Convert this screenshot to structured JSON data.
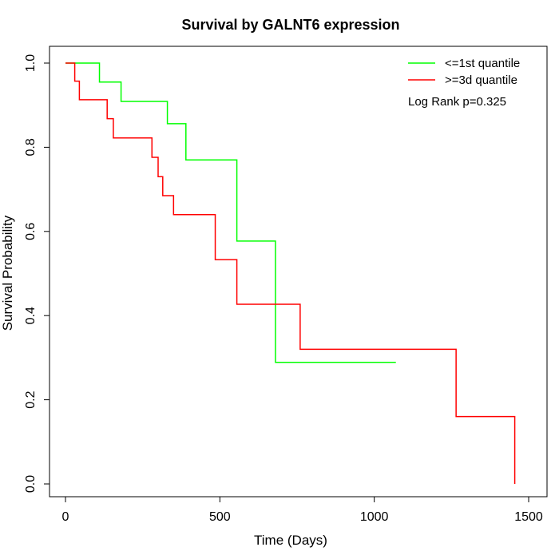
{
  "chart_data": {
    "type": "line",
    "title": "Survival by GALNT6 expression",
    "xlabel": "Time (Days)",
    "ylabel": "Survival Probability",
    "xlim": [
      0,
      1500
    ],
    "ylim": [
      0,
      1
    ],
    "x_ticks": [
      0,
      500,
      1000,
      1500
    ],
    "y_ticks": [
      0.0,
      0.2,
      0.4,
      0.6,
      0.8,
      1.0
    ],
    "x_tick_labels": [
      "0",
      "500",
      "1000",
      "1500"
    ],
    "y_tick_labels": [
      "0.0",
      "0.2",
      "0.4",
      "0.6",
      "0.8",
      "1.0"
    ],
    "grid": false,
    "legend_position": "top-right",
    "annotation": "Log Rank p=0.325",
    "series": [
      {
        "name": "<=1st quantile",
        "color": "#00ff00",
        "step": true,
        "points": [
          [
            0,
            1.0
          ],
          [
            110,
            1.0
          ],
          [
            110,
            0.955
          ],
          [
            180,
            0.955
          ],
          [
            180,
            0.909
          ],
          [
            330,
            0.909
          ],
          [
            330,
            0.856
          ],
          [
            390,
            0.856
          ],
          [
            390,
            0.77
          ],
          [
            555,
            0.77
          ],
          [
            555,
            0.577
          ],
          [
            680,
            0.577
          ],
          [
            680,
            0.289
          ],
          [
            1070,
            0.289
          ]
        ]
      },
      {
        "name": ">=3d quantile",
        "color": "#ff0000",
        "step": true,
        "points": [
          [
            0,
            1.0
          ],
          [
            30,
            1.0
          ],
          [
            30,
            0.957
          ],
          [
            45,
            0.957
          ],
          [
            45,
            0.913
          ],
          [
            135,
            0.913
          ],
          [
            135,
            0.868
          ],
          [
            155,
            0.868
          ],
          [
            155,
            0.822
          ],
          [
            280,
            0.822
          ],
          [
            280,
            0.776
          ],
          [
            300,
            0.776
          ],
          [
            300,
            0.73
          ],
          [
            315,
            0.73
          ],
          [
            315,
            0.685
          ],
          [
            350,
            0.685
          ],
          [
            350,
            0.64
          ],
          [
            485,
            0.64
          ],
          [
            485,
            0.533
          ],
          [
            555,
            0.533
          ],
          [
            555,
            0.427
          ],
          [
            760,
            0.427
          ],
          [
            760,
            0.32
          ],
          [
            1265,
            0.32
          ],
          [
            1265,
            0.16
          ],
          [
            1455,
            0.16
          ],
          [
            1455,
            0.0
          ]
        ]
      }
    ]
  }
}
